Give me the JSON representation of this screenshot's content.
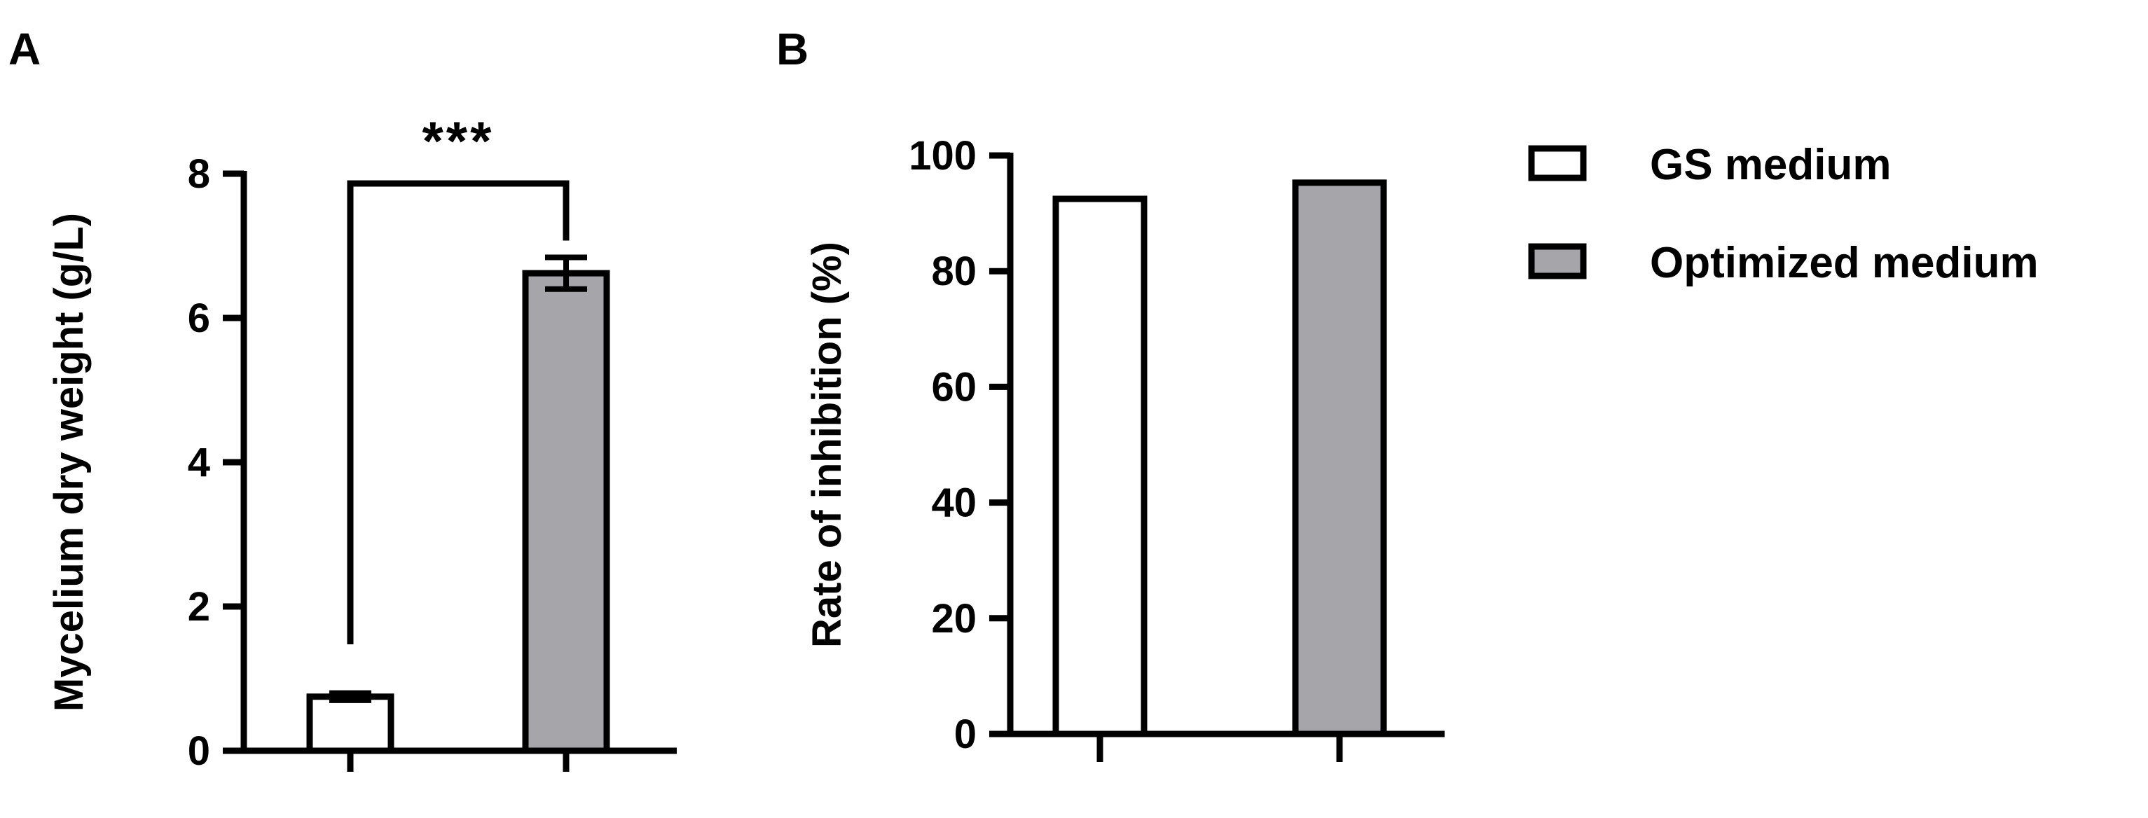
{
  "figure": {
    "panel_labels": [
      "A",
      "B"
    ]
  },
  "legend": {
    "entries": [
      {
        "label": "GS medium",
        "color": "#ffffff"
      },
      {
        "label": "Optimized medium",
        "color": "#a6a6aa"
      }
    ],
    "position": "right"
  },
  "chart_data": [
    {
      "panel": "A",
      "type": "bar",
      "categories": [
        "GS medium",
        "Optimized medium"
      ],
      "values": [
        0.75,
        6.62
      ],
      "errors": [
        0.05,
        0.22
      ],
      "colors": [
        "#ffffff",
        "#a6a6aa"
      ],
      "title": "",
      "xlabel": "",
      "ylabel": "Mycelium dry weight (g/L)",
      "ylim": [
        0,
        8
      ],
      "yticks": [
        0,
        2,
        4,
        6,
        8
      ],
      "grid": false,
      "annotation": {
        "text": "***",
        "between": [
          0,
          1
        ]
      }
    },
    {
      "panel": "B",
      "type": "bar",
      "categories": [
        "GS medium",
        "Optimized medium"
      ],
      "values": [
        92.5,
        95.3
      ],
      "colors": [
        "#ffffff",
        "#a6a6aa"
      ],
      "title": "",
      "xlabel": "",
      "ylabel": "Rate of inhibition (%)",
      "ylim": [
        0,
        100
      ],
      "yticks": [
        0,
        20,
        40,
        60,
        80,
        100
      ],
      "grid": false
    }
  ]
}
